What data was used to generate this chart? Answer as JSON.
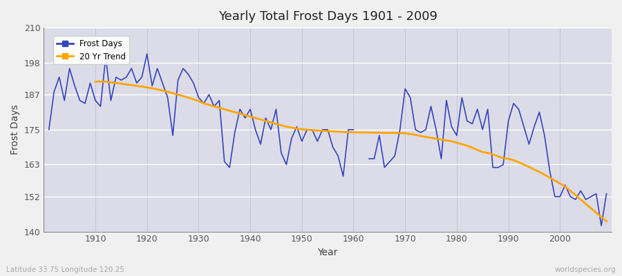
{
  "title": "Yearly Total Frost Days 1901 - 2009",
  "xlabel": "Year",
  "ylabel": "Frost Days",
  "subtitle_left": "Latitude 33.75 Longitude 120.25",
  "subtitle_right": "worldspecies.org",
  "ylim": [
    140,
    210
  ],
  "yticks": [
    140,
    152,
    163,
    175,
    187,
    198,
    210
  ],
  "xticks": [
    1910,
    1920,
    1930,
    1940,
    1950,
    1960,
    1970,
    1980,
    1990,
    2000
  ],
  "line_color": "#3344bb",
  "trend_color": "#FFA500",
  "bg_color": "#dcdce8",
  "fig_color": "#f0f0f0",
  "years": [
    1901,
    1902,
    1903,
    1904,
    1905,
    1906,
    1907,
    1908,
    1909,
    1910,
    1911,
    1912,
    1913,
    1914,
    1915,
    1916,
    1917,
    1918,
    1919,
    1920,
    1921,
    1922,
    1923,
    1924,
    1925,
    1926,
    1927,
    1928,
    1929,
    1930,
    1931,
    1932,
    1933,
    1934,
    1935,
    1936,
    1937,
    1938,
    1939,
    1940,
    1941,
    1942,
    1943,
    1944,
    1945,
    1946,
    1947,
    1948,
    1949,
    1950,
    1951,
    1952,
    1953,
    1954,
    1955,
    1956,
    1957,
    1958,
    1959,
    1960,
    1961,
    1962,
    1963,
    1964,
    1965,
    1966,
    1967,
    1968,
    1969,
    1970,
    1971,
    1972,
    1973,
    1974,
    1975,
    1976,
    1977,
    1978,
    1979,
    1980,
    1981,
    1982,
    1983,
    1984,
    1985,
    1986,
    1987,
    1988,
    1989,
    1990,
    1991,
    1992,
    1993,
    1994,
    1995,
    1996,
    1997,
    1998,
    1999,
    2000,
    2001,
    2002,
    2003,
    2004,
    2005,
    2006,
    2007,
    2008,
    2009
  ],
  "frost_days": [
    175,
    188,
    193,
    185,
    196,
    190,
    185,
    184,
    191,
    185,
    183,
    200,
    185,
    193,
    192,
    193,
    196,
    191,
    193,
    201,
    190,
    196,
    191,
    186,
    173,
    192,
    196,
    194,
    191,
    186,
    184,
    187,
    183,
    185,
    164,
    162,
    174,
    182,
    179,
    182,
    175,
    170,
    179,
    175,
    182,
    167,
    163,
    172,
    176,
    171,
    175,
    175,
    171,
    175,
    175,
    169,
    166,
    159,
    175,
    175,
    null,
    null,
    165,
    165,
    173,
    162,
    164,
    166,
    175,
    189,
    186,
    175,
    174,
    175,
    183,
    175,
    165,
    185,
    176,
    173,
    186,
    178,
    177,
    182,
    175,
    182,
    162,
    162,
    163,
    178,
    184,
    182,
    176,
    170,
    176,
    181,
    173,
    161,
    152,
    152,
    156,
    152,
    151,
    154,
    151,
    152,
    153,
    142,
    153
  ],
  "trend_start": 1910,
  "trend_years": [
    1910,
    1911,
    1912,
    1913,
    1914,
    1915,
    1916,
    1917,
    1918,
    1919,
    1920,
    1921,
    1922,
    1923,
    1924,
    1925,
    1926,
    1927,
    1928,
    1929,
    1930,
    1931,
    1932,
    1933,
    1934,
    1935,
    1936,
    1937,
    1938,
    1939,
    1940,
    1941,
    1942,
    1943,
    1944,
    1945,
    1946,
    1947,
    1948,
    1949,
    1950,
    1951,
    1952,
    1953,
    1954,
    1955,
    1956,
    1957,
    1958,
    1959,
    1970,
    1971,
    1972,
    1973,
    1974,
    1975,
    1976,
    1977,
    1978,
    1979,
    1980,
    1981,
    1982,
    1983,
    1984,
    1985,
    1986,
    1987,
    1988,
    1989,
    1990,
    1991,
    1992,
    1993,
    1994,
    1995,
    1996,
    1997,
    1998,
    1999,
    2000,
    2001,
    2002,
    2003,
    2004,
    2005,
    2006,
    2007,
    2008,
    2009
  ],
  "trend_values": [
    191.5,
    191.5,
    191.5,
    191.2,
    191.0,
    190.8,
    190.5,
    190.3,
    190.0,
    189.8,
    189.5,
    189.2,
    188.8,
    188.4,
    188.0,
    187.5,
    187.0,
    186.5,
    186.0,
    185.4,
    184.8,
    184.0,
    183.5,
    183.0,
    182.5,
    182.0,
    181.5,
    181.0,
    180.5,
    180.0,
    179.5,
    179.0,
    178.5,
    178.0,
    177.5,
    177.0,
    176.5,
    176.0,
    175.7,
    175.4,
    175.1,
    175.0,
    174.8,
    174.7,
    174.6,
    174.5,
    174.4,
    174.3,
    174.2,
    174.1,
    173.8,
    173.5,
    173.2,
    172.8,
    172.5,
    172.2,
    171.9,
    171.6,
    171.3,
    171.0,
    170.5,
    170.0,
    169.5,
    168.8,
    168.0,
    167.3,
    167.0,
    166.5,
    165.8,
    165.2,
    165.0,
    164.5,
    163.8,
    163.0,
    162.2,
    161.3,
    160.5,
    159.5,
    158.5,
    157.5,
    156.5,
    155.5,
    154.0,
    152.5,
    151.0,
    149.5,
    148.0,
    146.5,
    145.0,
    143.5
  ]
}
